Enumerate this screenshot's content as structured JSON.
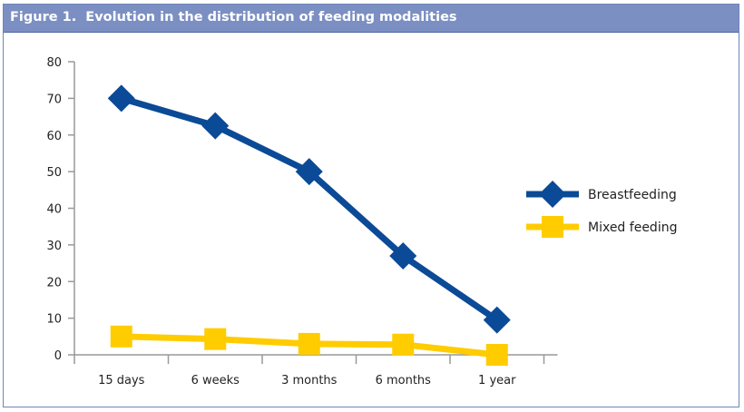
{
  "figure": {
    "title": "Figure 1.  Evolution in the distribution of feeding modalities"
  },
  "chart_data": {
    "type": "line",
    "title": "Figure 1.  Evolution in the distribution of feeding modalities",
    "categories": [
      "15 days",
      "6 weeks",
      "3 months",
      "6 months",
      "1 year"
    ],
    "ylim": [
      0,
      80
    ],
    "yticks": [
      "0",
      "10",
      "20",
      "30",
      "40",
      "50",
      "60",
      "70",
      "80"
    ],
    "grid": false,
    "legend": "right",
    "series": [
      {
        "name": "Breastfeeding",
        "values": [
          70,
          62.5,
          50,
          27,
          9.5
        ],
        "color": "#0b4a96",
        "marker": "diamond"
      },
      {
        "name": "Mixed feeding",
        "values": [
          5,
          4.3,
          3,
          2.8,
          0
        ],
        "color": "#ffcc00",
        "marker": "square"
      }
    ]
  }
}
